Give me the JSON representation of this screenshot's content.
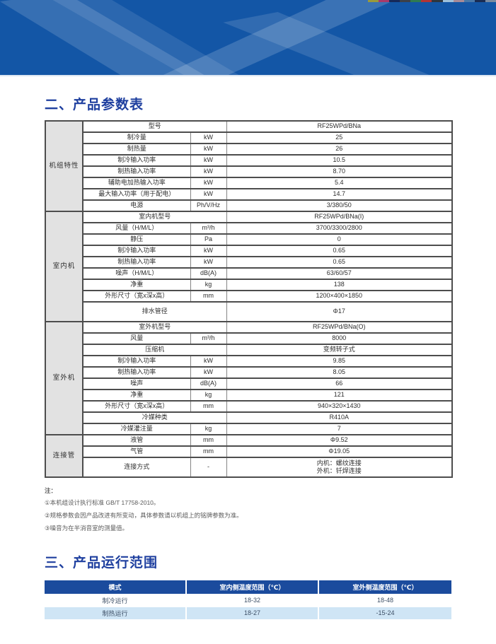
{
  "colors": {
    "banner": "#1356a6",
    "line": "#dce6f2",
    "title": "#1e3f9f",
    "grid": "#4d4d4d",
    "gridlight": "#858585",
    "groupbg": "#e2e2e2",
    "celltext": "#2e2e2e",
    "rangehead": "#1b4b9d",
    "rangealt": "#cfe5f5",
    "rangetext": "#3d4f66",
    "notecolor": "#5a5a5a"
  },
  "banner": {
    "strip_colors": [
      "#9a9a3c",
      "#a83a6a",
      "#16295a",
      "#3c4048",
      "#2f7a52",
      "#b23434",
      "#2f363e",
      "#9ec0da",
      "#a88a96",
      "#4878a8",
      "#1a2c52",
      "#7a8aa0"
    ]
  },
  "sections": {
    "parameters": {
      "title": "二、产品参数表"
    },
    "range": {
      "title": "三、产品运行范围"
    }
  },
  "spec_table": {
    "groups": [
      {
        "label": "机组特性",
        "rows": [
          {
            "name": "型号",
            "unit": null,
            "value": "RF25WPd/BNa"
          },
          {
            "name": "制冷量",
            "unit": "kW",
            "value": "25"
          },
          {
            "name": "制热量",
            "unit": "kW",
            "value": "26"
          },
          {
            "name": "制冷输入功率",
            "unit": "kW",
            "value": "10.5"
          },
          {
            "name": "制热输入功率",
            "unit": "kW",
            "value": "8.70"
          },
          {
            "name": "辅助电加热输入功率",
            "unit": "kW",
            "value": "5.4"
          },
          {
            "name": "最大输入功率（用于配电）",
            "unit": "kW",
            "value": "14.7"
          },
          {
            "name": "电源",
            "unit": "Ph/V/Hz",
            "value": "3/380/50"
          }
        ]
      },
      {
        "label": "室内机",
        "rows": [
          {
            "name": "室内机型号",
            "unit": null,
            "value": "RF25WPd/BNa(I)"
          },
          {
            "name": "风量（H/M/L）",
            "unit": "m³/h",
            "value": "3700/3300/2800"
          },
          {
            "name": "静压",
            "unit": "Pa",
            "value": "0"
          },
          {
            "name": "制冷输入功率",
            "unit": "kW",
            "value": "0.65"
          },
          {
            "name": "制热输入功率",
            "unit": "kW",
            "value": "0.65"
          },
          {
            "name": "噪声（H/M/L）",
            "unit": "dB(A)",
            "value": "63/60/57"
          },
          {
            "name": "净重",
            "unit": "kg",
            "value": "138"
          },
          {
            "name": "外形尺寸（宽x深x高）",
            "unit": "mm",
            "value": "1200×400×1850"
          },
          {
            "name": "排水管径",
            "unit": null,
            "value": "Φ17",
            "tall": true
          }
        ]
      },
      {
        "label": "室外机",
        "rows": [
          {
            "name": "室外机型号",
            "unit": null,
            "value": "RF25WPd/BNa(O)"
          },
          {
            "name": "风量",
            "unit": "m³/h",
            "value": "8000"
          },
          {
            "name": "压缩机",
            "unit": null,
            "value": "变频转子式"
          },
          {
            "name": "制冷输入功率",
            "unit": "kW",
            "value": "9.85"
          },
          {
            "name": "制热输入功率",
            "unit": "kW",
            "value": "8.05"
          },
          {
            "name": "噪声",
            "unit": "dB(A)",
            "value": "66"
          },
          {
            "name": "净重",
            "unit": "kg",
            "value": "121"
          },
          {
            "name": "外形尺寸（宽x深x高）",
            "unit": "mm",
            "value": "940×320×1430"
          },
          {
            "name": "冷媒种类",
            "unit": null,
            "value": "R410A"
          },
          {
            "name": "冷媒灌注量",
            "unit": "kg",
            "value": "7"
          }
        ]
      },
      {
        "label": "连接管",
        "rows": [
          {
            "name": "液管",
            "unit": "mm",
            "value": "Φ9.52"
          },
          {
            "name": "气管",
            "unit": "mm",
            "value": "Φ19.05"
          },
          {
            "name": "连接方式",
            "unit": "-",
            "value": "内机：螺纹连接\n外机：钎焊连接",
            "tall": true
          }
        ]
      }
    ]
  },
  "notes": {
    "label": "注：",
    "items": [
      "①本机组设计执行标准 GB/T 17758-2010。",
      "②规格参数会因产品改进有所变动，具体参数请以机组上的铭牌参数为准。",
      "③噪音为在半消音室的测量值。"
    ]
  },
  "range_table": {
    "headers": [
      "模式",
      "室内侧温度范围（℃）",
      "室外侧温度范围（℃）"
    ],
    "rows": [
      [
        "制冷运行",
        "18-32",
        "18-48"
      ],
      [
        "制热运行",
        "18-27",
        "-15-24"
      ]
    ]
  }
}
